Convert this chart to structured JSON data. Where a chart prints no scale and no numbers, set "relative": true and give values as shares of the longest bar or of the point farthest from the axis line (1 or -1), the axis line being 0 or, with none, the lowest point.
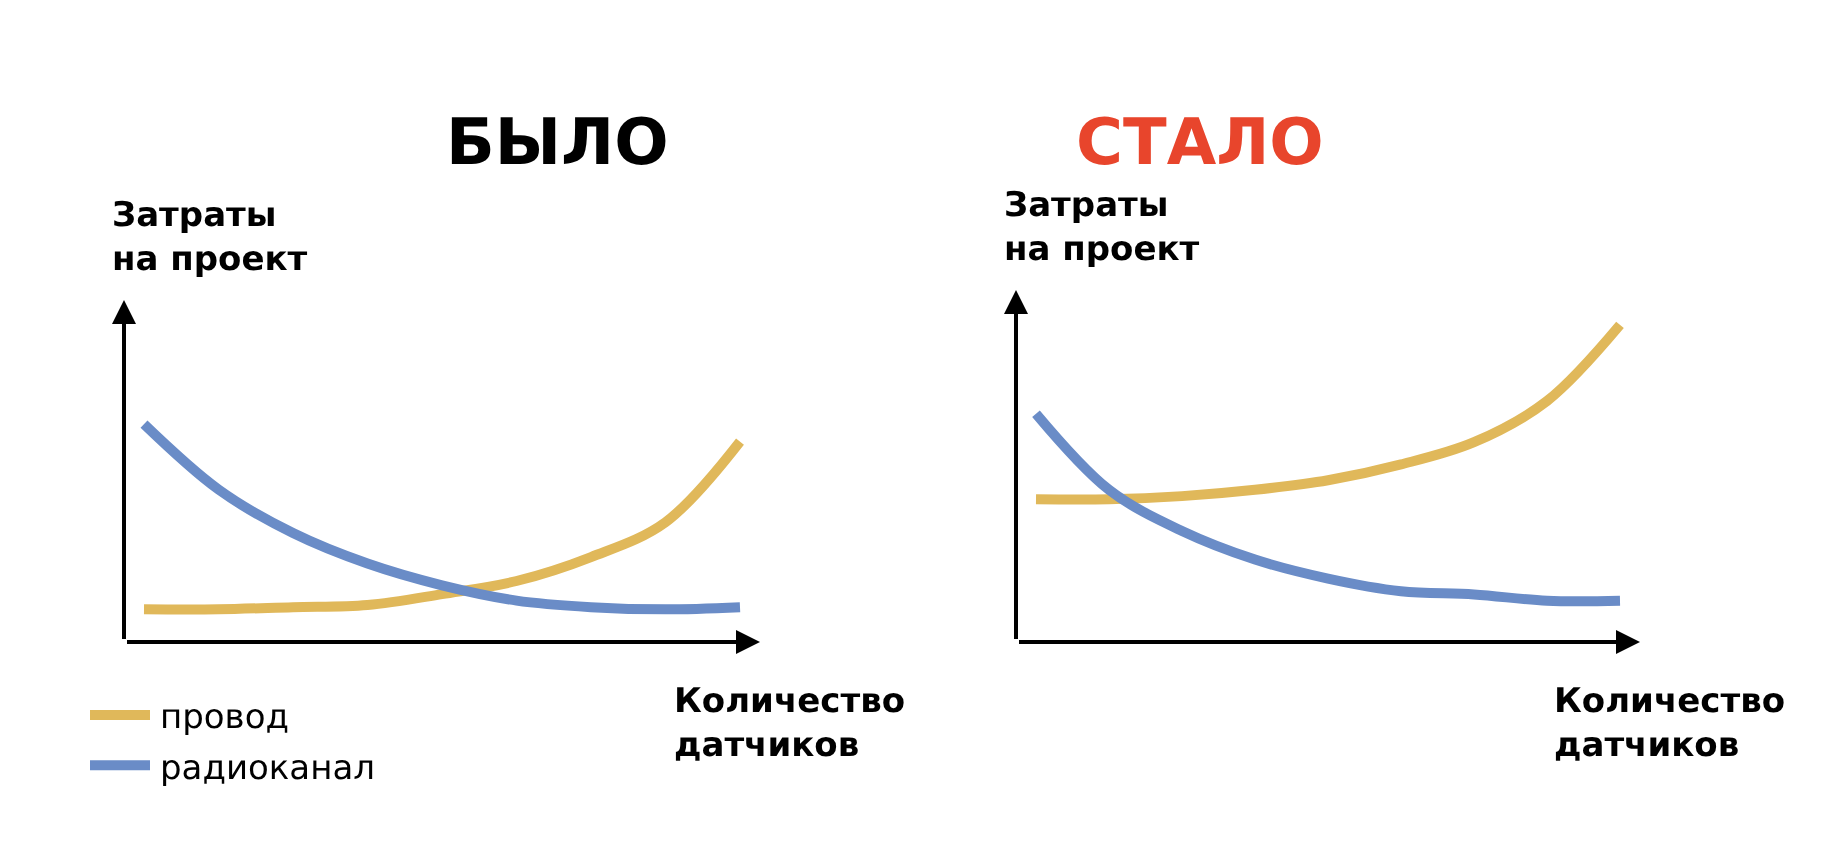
{
  "chart_data": [
    {
      "type": "line",
      "title": "БЫЛО",
      "ylabel": "Затраты\nна проект",
      "xlabel": "Количество\nдатчиков",
      "relative": true,
      "legend": "bottom left",
      "categories": [
        null,
        null,
        null,
        null,
        null,
        null,
        null,
        null,
        null
      ],
      "series": [
        {
          "name": "провод",
          "color": "#e0b85a",
          "values": [
            0.15,
            0.15,
            0.16,
            0.17,
            0.22,
            0.28,
            0.39,
            0.55,
            0.92
          ]
        },
        {
          "name": "радиоканал",
          "color": "#6a8cc7",
          "values": [
            1,
            0.7,
            0.5,
            0.36,
            0.26,
            0.19,
            0.16,
            0.15,
            0.16
          ]
        }
      ]
    },
    {
      "type": "line",
      "title": "СТАЛО",
      "ylabel": "Затраты\nна проект",
      "xlabel": "Количество\nдатчиков",
      "relative": true,
      "legend": false,
      "categories": [
        null,
        null,
        null,
        null,
        null,
        null,
        null,
        null,
        null
      ],
      "series": [
        {
          "color": "#e0b85a",
          "values": [
            0.45,
            0.45,
            0.46,
            0.48,
            0.51,
            0.56,
            0.63,
            0.76,
            1
          ]
        },
        {
          "color": "#6a8cc7",
          "values": [
            0.72,
            0.48,
            0.35,
            0.26,
            0.2,
            0.16,
            0.15,
            0.13,
            0.13
          ]
        }
      ]
    }
  ]
}
